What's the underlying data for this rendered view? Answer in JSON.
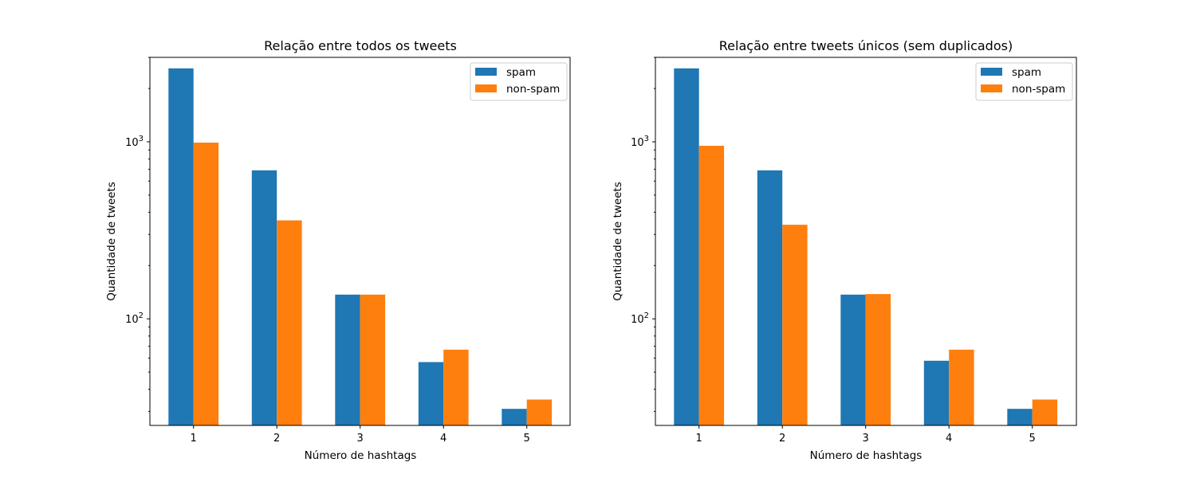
{
  "chart_data": [
    {
      "type": "bar",
      "title": "Relação entre todos os tweets",
      "xlabel": "Número de hashtags",
      "ylabel": "Quantidade de tweets",
      "yscale": "log",
      "ylim": [
        25,
        3000
      ],
      "categories": [
        "1",
        "2",
        "3",
        "4",
        "5"
      ],
      "series": [
        {
          "name": "spam",
          "color": "#1f77b4",
          "values": [
            2600,
            690,
            137,
            57,
            31
          ]
        },
        {
          "name": "non-spam",
          "color": "#ff7f0e",
          "values": [
            990,
            360,
            137,
            67,
            35
          ]
        }
      ],
      "yticks_major": [
        {
          "base": "10",
          "exp": "2"
        },
        {
          "base": "10",
          "exp": "3"
        }
      ],
      "legend": "top-right",
      "grid": false
    },
    {
      "type": "bar",
      "title": "Relação entre tweets únicos (sem duplicados)",
      "xlabel": "Número de hashtags",
      "ylabel": "Quantidade de tweets",
      "yscale": "log",
      "ylim": [
        25,
        3000
      ],
      "categories": [
        "1",
        "2",
        "3",
        "4",
        "5"
      ],
      "series": [
        {
          "name": "spam",
          "color": "#1f77b4",
          "values": [
            2600,
            690,
            137,
            58,
            31
          ]
        },
        {
          "name": "non-spam",
          "color": "#ff7f0e",
          "values": [
            950,
            340,
            138,
            67,
            35
          ]
        }
      ],
      "yticks_major": [
        {
          "base": "10",
          "exp": "2"
        },
        {
          "base": "10",
          "exp": "3"
        }
      ],
      "legend": "top-right",
      "grid": false
    }
  ]
}
